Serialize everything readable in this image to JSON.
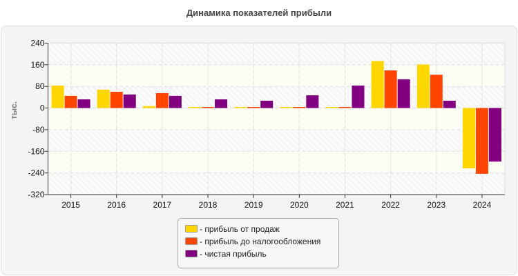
{
  "chart_data": {
    "type": "bar",
    "title": "Динамика показателей прибыли",
    "ylabel": "тыс.",
    "xlabel": "",
    "ylim": [
      -320,
      240
    ],
    "yticks": [
      240,
      160,
      80,
      0,
      -80,
      -160,
      -240,
      -320
    ],
    "grid": true,
    "legend_position": "bottom",
    "categories": [
      "2015",
      "2016",
      "2017",
      "2018",
      "2019",
      "2020",
      "2021",
      "2022",
      "2023",
      "2024"
    ],
    "series": [
      {
        "name": "- прибыль от продаж",
        "color": "#FFD700",
        "values": [
          83,
          68,
          7,
          4,
          4,
          4,
          4,
          174,
          161,
          -223
        ]
      },
      {
        "name": "- прибыль до налогообложения",
        "color": "#FF4500",
        "values": [
          45,
          60,
          55,
          4,
          4,
          4,
          4,
          139,
          123,
          -243
        ]
      },
      {
        "name": "- чистая прибыль",
        "color": "#800080",
        "values": [
          32,
          50,
          45,
          32,
          27,
          47,
          83,
          106,
          27,
          -198
        ]
      }
    ]
  }
}
